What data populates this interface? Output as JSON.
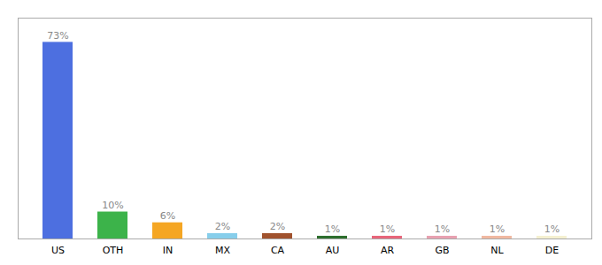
{
  "chart_data": {
    "type": "bar",
    "categories": [
      "US",
      "OTH",
      "IN",
      "MX",
      "CA",
      "AU",
      "AR",
      "GB",
      "NL",
      "DE"
    ],
    "values": [
      73,
      10,
      6,
      2,
      2,
      1,
      1,
      1,
      1,
      1
    ],
    "value_labels": [
      "73%",
      "10%",
      "6%",
      "2%",
      "2%",
      "1%",
      "1%",
      "1%",
      "1%",
      "1%"
    ],
    "colors": [
      "#4d6fe0",
      "#3cb34a",
      "#f5a623",
      "#87ceeb",
      "#a0522d",
      "#2d6e2d",
      "#e8657a",
      "#e8a0b0",
      "#f0b8a0",
      "#f5f0d0"
    ],
    "ylim": [
      0,
      82
    ],
    "yticks": [],
    "grid": false,
    "data_labels": true,
    "tick_labels": "x"
  }
}
